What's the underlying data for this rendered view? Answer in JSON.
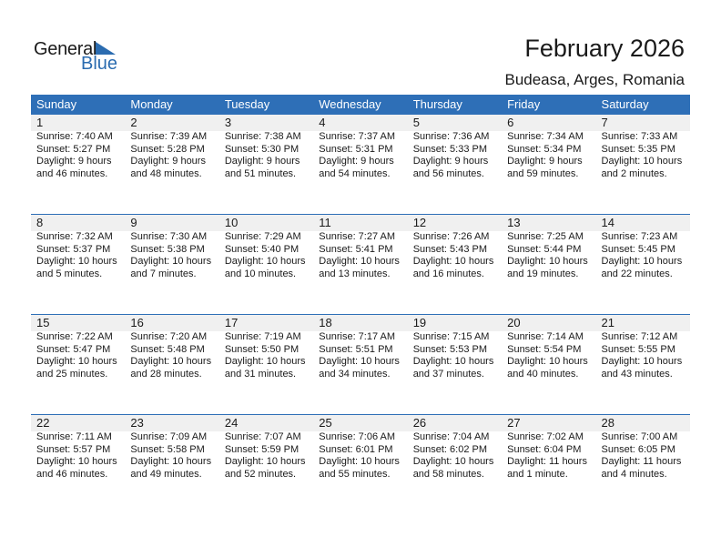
{
  "logo": {
    "line1": "General",
    "line2": "Blue",
    "accent": "#2b6cb0"
  },
  "header": {
    "title": "February 2026",
    "location": "Budeasa, Arges, Romania"
  },
  "weekdays": [
    "Sunday",
    "Monday",
    "Tuesday",
    "Wednesday",
    "Thursday",
    "Friday",
    "Saturday"
  ],
  "weeks": [
    [
      {
        "day": "1",
        "sunrise": "Sunrise: 7:40 AM",
        "sunset": "Sunset: 5:27 PM",
        "daylight": "Daylight: 9 hours",
        "minutes": "and 46 minutes."
      },
      {
        "day": "2",
        "sunrise": "Sunrise: 7:39 AM",
        "sunset": "Sunset: 5:28 PM",
        "daylight": "Daylight: 9 hours",
        "minutes": "and 48 minutes."
      },
      {
        "day": "3",
        "sunrise": "Sunrise: 7:38 AM",
        "sunset": "Sunset: 5:30 PM",
        "daylight": "Daylight: 9 hours",
        "minutes": "and 51 minutes."
      },
      {
        "day": "4",
        "sunrise": "Sunrise: 7:37 AM",
        "sunset": "Sunset: 5:31 PM",
        "daylight": "Daylight: 9 hours",
        "minutes": "and 54 minutes."
      },
      {
        "day": "5",
        "sunrise": "Sunrise: 7:36 AM",
        "sunset": "Sunset: 5:33 PM",
        "daylight": "Daylight: 9 hours",
        "minutes": "and 56 minutes."
      },
      {
        "day": "6",
        "sunrise": "Sunrise: 7:34 AM",
        "sunset": "Sunset: 5:34 PM",
        "daylight": "Daylight: 9 hours",
        "minutes": "and 59 minutes."
      },
      {
        "day": "7",
        "sunrise": "Sunrise: 7:33 AM",
        "sunset": "Sunset: 5:35 PM",
        "daylight": "Daylight: 10 hours",
        "minutes": "and 2 minutes."
      }
    ],
    [
      {
        "day": "8",
        "sunrise": "Sunrise: 7:32 AM",
        "sunset": "Sunset: 5:37 PM",
        "daylight": "Daylight: 10 hours",
        "minutes": "and 5 minutes."
      },
      {
        "day": "9",
        "sunrise": "Sunrise: 7:30 AM",
        "sunset": "Sunset: 5:38 PM",
        "daylight": "Daylight: 10 hours",
        "minutes": "and 7 minutes."
      },
      {
        "day": "10",
        "sunrise": "Sunrise: 7:29 AM",
        "sunset": "Sunset: 5:40 PM",
        "daylight": "Daylight: 10 hours",
        "minutes": "and 10 minutes."
      },
      {
        "day": "11",
        "sunrise": "Sunrise: 7:27 AM",
        "sunset": "Sunset: 5:41 PM",
        "daylight": "Daylight: 10 hours",
        "minutes": "and 13 minutes."
      },
      {
        "day": "12",
        "sunrise": "Sunrise: 7:26 AM",
        "sunset": "Sunset: 5:43 PM",
        "daylight": "Daylight: 10 hours",
        "minutes": "and 16 minutes."
      },
      {
        "day": "13",
        "sunrise": "Sunrise: 7:25 AM",
        "sunset": "Sunset: 5:44 PM",
        "daylight": "Daylight: 10 hours",
        "minutes": "and 19 minutes."
      },
      {
        "day": "14",
        "sunrise": "Sunrise: 7:23 AM",
        "sunset": "Sunset: 5:45 PM",
        "daylight": "Daylight: 10 hours",
        "minutes": "and 22 minutes."
      }
    ],
    [
      {
        "day": "15",
        "sunrise": "Sunrise: 7:22 AM",
        "sunset": "Sunset: 5:47 PM",
        "daylight": "Daylight: 10 hours",
        "minutes": "and 25 minutes."
      },
      {
        "day": "16",
        "sunrise": "Sunrise: 7:20 AM",
        "sunset": "Sunset: 5:48 PM",
        "daylight": "Daylight: 10 hours",
        "minutes": "and 28 minutes."
      },
      {
        "day": "17",
        "sunrise": "Sunrise: 7:19 AM",
        "sunset": "Sunset: 5:50 PM",
        "daylight": "Daylight: 10 hours",
        "minutes": "and 31 minutes."
      },
      {
        "day": "18",
        "sunrise": "Sunrise: 7:17 AM",
        "sunset": "Sunset: 5:51 PM",
        "daylight": "Daylight: 10 hours",
        "minutes": "and 34 minutes."
      },
      {
        "day": "19",
        "sunrise": "Sunrise: 7:15 AM",
        "sunset": "Sunset: 5:53 PM",
        "daylight": "Daylight: 10 hours",
        "minutes": "and 37 minutes."
      },
      {
        "day": "20",
        "sunrise": "Sunrise: 7:14 AM",
        "sunset": "Sunset: 5:54 PM",
        "daylight": "Daylight: 10 hours",
        "minutes": "and 40 minutes."
      },
      {
        "day": "21",
        "sunrise": "Sunrise: 7:12 AM",
        "sunset": "Sunset: 5:55 PM",
        "daylight": "Daylight: 10 hours",
        "minutes": "and 43 minutes."
      }
    ],
    [
      {
        "day": "22",
        "sunrise": "Sunrise: 7:11 AM",
        "sunset": "Sunset: 5:57 PM",
        "daylight": "Daylight: 10 hours",
        "minutes": "and 46 minutes."
      },
      {
        "day": "23",
        "sunrise": "Sunrise: 7:09 AM",
        "sunset": "Sunset: 5:58 PM",
        "daylight": "Daylight: 10 hours",
        "minutes": "and 49 minutes."
      },
      {
        "day": "24",
        "sunrise": "Sunrise: 7:07 AM",
        "sunset": "Sunset: 5:59 PM",
        "daylight": "Daylight: 10 hours",
        "minutes": "and 52 minutes."
      },
      {
        "day": "25",
        "sunrise": "Sunrise: 7:06 AM",
        "sunset": "Sunset: 6:01 PM",
        "daylight": "Daylight: 10 hours",
        "minutes": "and 55 minutes."
      },
      {
        "day": "26",
        "sunrise": "Sunrise: 7:04 AM",
        "sunset": "Sunset: 6:02 PM",
        "daylight": "Daylight: 10 hours",
        "minutes": "and 58 minutes."
      },
      {
        "day": "27",
        "sunrise": "Sunrise: 7:02 AM",
        "sunset": "Sunset: 6:04 PM",
        "daylight": "Daylight: 11 hours",
        "minutes": "and 1 minute."
      },
      {
        "day": "28",
        "sunrise": "Sunrise: 7:00 AM",
        "sunset": "Sunset: 6:05 PM",
        "daylight": "Daylight: 11 hours",
        "minutes": "and 4 minutes."
      }
    ]
  ]
}
